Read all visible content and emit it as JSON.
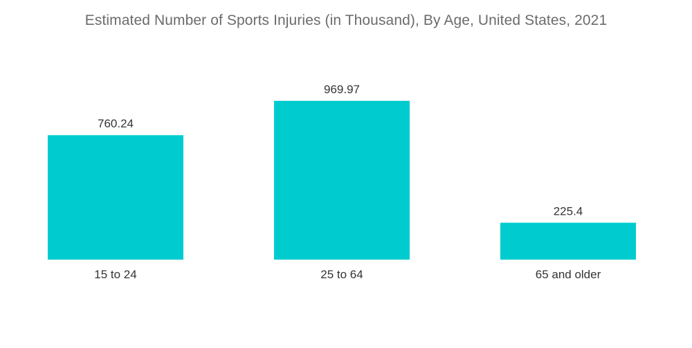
{
  "chart_data": {
    "type": "bar",
    "title": "Estimated Number of Sports Injuries (in Thousand), By Age, United States, 2021",
    "categories": [
      "15 to 24",
      "25 to 64",
      "65 and older"
    ],
    "values": [
      760.24,
      969.97,
      225.4
    ],
    "value_labels": [
      "760.24",
      "969.97",
      "225.4"
    ],
    "bar_color": "#00cccf",
    "ylim": [
      0,
      1100
    ],
    "grid": false,
    "legend": "none"
  }
}
